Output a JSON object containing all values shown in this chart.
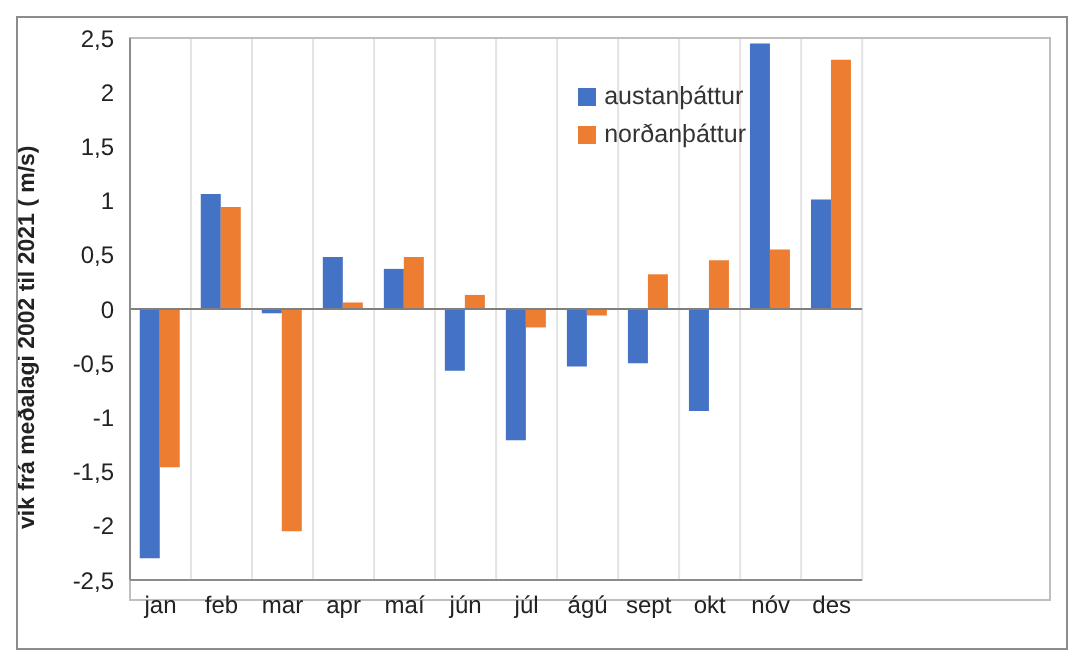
{
  "chart_data": {
    "type": "bar",
    "ylabel": "vik frá meðalagi 2002 til 2021 ( m/s)",
    "categories": [
      "jan",
      "feb",
      "mar",
      "apr",
      "maí",
      "jún",
      "júl",
      "ágú",
      "sept",
      "okt",
      "nóv",
      "des"
    ],
    "series": [
      {
        "name": "austanþáttur",
        "color": "#4472c4",
        "values": [
          -2.3,
          1.06,
          -0.04,
          0.48,
          0.37,
          -0.57,
          -1.21,
          -0.53,
          -0.5,
          -0.94,
          2.45,
          1.01
        ]
      },
      {
        "name": "norðanþáttur",
        "color": "#ed7d31",
        "values": [
          -1.46,
          0.94,
          -2.05,
          0.06,
          0.48,
          0.13,
          -0.17,
          -0.06,
          0.32,
          0.45,
          0.55,
          2.3
        ]
      }
    ],
    "ylim": [
      -2.5,
      2.5
    ],
    "yticks": [
      {
        "value": -2.5,
        "label": "-2,5"
      },
      -2,
      {
        "value": -1.5,
        "label": "-1,5"
      },
      -1,
      {
        "value": -0.5,
        "label": "-0,5"
      },
      0,
      {
        "value": 0.5,
        "label": "0,5"
      },
      1,
      {
        "value": 1.5,
        "label": "1,5"
      },
      2,
      {
        "value": 2.5,
        "label": "2,5"
      }
    ],
    "grid": true,
    "legend": "top right"
  }
}
